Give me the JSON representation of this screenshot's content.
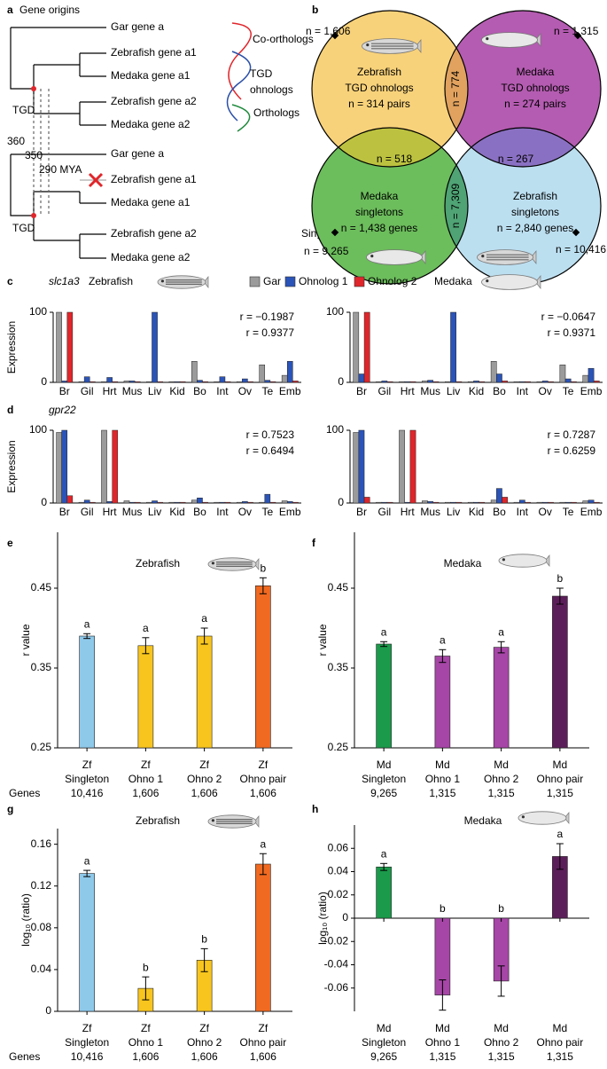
{
  "panel_labels": [
    "a",
    "b",
    "c",
    "d",
    "e",
    "f",
    "g",
    "h"
  ],
  "tree": {
    "title": "Gene origins",
    "leaves": [
      {
        "text": "Gar gene a"
      },
      {
        "text": "Zebrafish gene a1"
      },
      {
        "text": "Medaka gene a1"
      },
      {
        "text": "Zebrafish gene a2"
      },
      {
        "text": "Medaka gene a2"
      },
      {
        "text": "Gar gene a"
      },
      {
        "text": "Zebrafish gene a1",
        "color": "#9a9a9a"
      },
      {
        "text": "Medaka gene a1"
      },
      {
        "text": "Zebrafish gene a2"
      },
      {
        "text": "Medaka gene a2"
      }
    ],
    "tgd": [
      "TGD",
      "TGD"
    ],
    "ages": [
      "360",
      "350",
      "290 MYA"
    ],
    "legend": [
      {
        "lines": [
          "Co-orthologs"
        ],
        "color": "#e0262b"
      },
      {
        "lines": [
          "TGD",
          "ohnologs"
        ],
        "color": "#2a4fa8"
      },
      {
        "lines": [
          "Orthologs"
        ],
        "color": "#1f8a3c"
      }
    ],
    "singleton": {
      "text": "Singleton",
      "color": "#e0262b"
    }
  },
  "venn": {
    "sets": [
      {
        "lines": [
          "Zebrafish",
          "TGD ohnologs",
          "n = 314 pairs"
        ],
        "color": "#f8d27a"
      },
      {
        "lines": [
          "Medaka",
          "TGD ohnologs",
          "n = 274 pairs"
        ],
        "color": "#b45cb1"
      },
      {
        "lines": [
          "Medaka",
          "singletons",
          "n = 1,438 genes"
        ],
        "color": "#6cbd5c"
      },
      {
        "lines": [
          "Zebrafish",
          "singletons",
          "n = 2,840 genes"
        ],
        "color": "#bcdff0"
      }
    ],
    "overlaps": [
      {
        "text": "n = 774",
        "color": "#e0a25e"
      },
      {
        "text": "n = 518",
        "color": "#bcc23f"
      },
      {
        "text": "n = 267",
        "color": "#8a70c2"
      },
      {
        "text": "n = 7,309",
        "color": "#4fa374"
      }
    ],
    "totals": [
      "n = 1,606",
      "n = 1,315",
      "n = 9,265",
      "n = 10,416"
    ]
  },
  "expression_legend": [
    {
      "name": "Gar",
      "color": "#9b9b9b"
    },
    {
      "name": "Ohnolog 1",
      "color": "#2b54b8"
    },
    {
      "name": "Ohnolog 2",
      "color": "#e0262b"
    }
  ],
  "chart_data": [
    {
      "type": "bar",
      "gene": "slc1a3",
      "title": "Zebrafish",
      "ylabel": "Expression",
      "categories": [
        "Br",
        "Gil",
        "Hrt",
        "Mus",
        "Liv",
        "Kid",
        "Bo",
        "Int",
        "Ov",
        "Te",
        "Emb"
      ],
      "series": [
        {
          "values": [
            100,
            1,
            1,
            2,
            1,
            1,
            30,
            1,
            1,
            25,
            10
          ]
        },
        {
          "values": [
            2,
            8,
            7,
            2,
            100,
            1,
            3,
            8,
            5,
            3,
            30
          ]
        },
        {
          "values": [
            100,
            1,
            1,
            1,
            1,
            1,
            1,
            1,
            1,
            1,
            2
          ]
        }
      ],
      "ylim": [
        0,
        100
      ],
      "yticks": [
        0,
        100
      ],
      "annotations": [
        {
          "text": "r = −0.1987",
          "color": "#2a5cb8"
        },
        {
          "text": "r = 0.9377",
          "color": "#e0262b"
        }
      ]
    },
    {
      "type": "bar",
      "title": "Medaka",
      "categories": [
        "Br",
        "Gil",
        "Hrt",
        "Mus",
        "Liv",
        "Kid",
        "Bo",
        "Int",
        "Ov",
        "Te",
        "Emb"
      ],
      "series": [
        {
          "values": [
            100,
            1,
            1,
            2,
            1,
            1,
            30,
            1,
            1,
            25,
            10
          ]
        },
        {
          "values": [
            12,
            2,
            1,
            3,
            100,
            2,
            12,
            1,
            2,
            5,
            20
          ]
        },
        {
          "values": [
            100,
            1,
            1,
            1,
            1,
            1,
            2,
            1,
            1,
            1,
            2
          ]
        }
      ],
      "ylim": [
        0,
        100
      ],
      "yticks": [
        0,
        100
      ],
      "annotations": [
        {
          "text": "r = −0.0647",
          "color": "#2a5cb8"
        },
        {
          "text": "r = 0.9371",
          "color": "#e0262b"
        }
      ]
    },
    {
      "type": "bar",
      "gene": "gpr22",
      "ylabel": "Expression",
      "categories": [
        "Br",
        "Gil",
        "Hrt",
        "Mus",
        "Liv",
        "Kid",
        "Bo",
        "Int",
        "Ov",
        "Te",
        "Emb"
      ],
      "series": [
        {
          "values": [
            97,
            1,
            100,
            3,
            1,
            1,
            4,
            1,
            1,
            1,
            3
          ]
        },
        {
          "values": [
            100,
            4,
            2,
            1,
            3,
            1,
            7,
            1,
            2,
            12,
            2
          ]
        },
        {
          "values": [
            10,
            1,
            100,
            1,
            1,
            1,
            1,
            1,
            1,
            1,
            1
          ]
        }
      ],
      "ylim": [
        0,
        100
      ],
      "yticks": [
        0,
        100
      ],
      "annotations": [
        {
          "text": "r = 0.7523",
          "color": "#2a5cb8"
        },
        {
          "text": "r = 0.6494",
          "color": "#e0262b"
        }
      ]
    },
    {
      "type": "bar",
      "categories": [
        "Br",
        "Gil",
        "Hrt",
        "Mus",
        "Liv",
        "Kid",
        "Bo",
        "Int",
        "Ov",
        "Te",
        "Emb"
      ],
      "series": [
        {
          "values": [
            97,
            1,
            100,
            3,
            1,
            1,
            4,
            1,
            1,
            1,
            3
          ]
        },
        {
          "values": [
            100,
            1,
            1,
            2,
            1,
            1,
            20,
            4,
            1,
            1,
            4
          ]
        },
        {
          "values": [
            8,
            1,
            100,
            1,
            1,
            1,
            8,
            1,
            1,
            1,
            1
          ]
        }
      ],
      "ylim": [
        0,
        100
      ],
      "yticks": [
        0,
        100
      ],
      "annotations": [
        {
          "text": "r = 0.7287",
          "color": "#2a5cb8"
        },
        {
          "text": "r = 0.6259",
          "color": "#e0262b"
        }
      ]
    },
    {
      "type": "bar",
      "title": "Zebrafish",
      "ylabel": "r value",
      "categories": [
        [
          "Zf",
          "Singleton"
        ],
        [
          "Zf",
          "Ohno 1"
        ],
        [
          "Zf",
          "Ohno 2"
        ],
        [
          "Zf",
          "Ohno pair"
        ]
      ],
      "values": [
        0.39,
        0.378,
        0.39,
        0.453
      ],
      "errors": [
        0.003,
        0.01,
        0.01,
        0.01
      ],
      "colors": [
        "#8ec9ea",
        "#f7c51e",
        "#f7c51e",
        "#f06a22"
      ],
      "letters": [
        "a",
        "a",
        "a",
        "b"
      ],
      "genes_label": "Genes",
      "gene_counts": [
        "10,416",
        "1,606",
        "1,606",
        "1,606"
      ],
      "ylim": [
        0.25,
        0.52
      ],
      "yticks": [
        0.25,
        0.35,
        0.45
      ]
    },
    {
      "type": "bar",
      "title": "Medaka",
      "ylabel": "r value",
      "categories": [
        [
          "Md",
          "Singleton"
        ],
        [
          "Md",
          "Ohno 1"
        ],
        [
          "Md",
          "Ohno 2"
        ],
        [
          "Md",
          "Ohno pair"
        ]
      ],
      "values": [
        0.38,
        0.365,
        0.376,
        0.44
      ],
      "errors": [
        0.003,
        0.008,
        0.007,
        0.01
      ],
      "colors": [
        "#1a9a4a",
        "#a646a6",
        "#a646a6",
        "#5c1e5a"
      ],
      "letters": [
        "a",
        "a",
        "a",
        "b"
      ],
      "gene_counts": [
        "9,265",
        "1,315",
        "1,315",
        "1,315"
      ],
      "ylim": [
        0.25,
        0.52
      ],
      "yticks": [
        0.25,
        0.35,
        0.45
      ]
    },
    {
      "type": "bar",
      "title": "Zebrafish",
      "ylabel": "log₁₀ (ratio)",
      "categories": [
        [
          "Zf",
          "Singleton"
        ],
        [
          "Zf",
          "Ohno 1"
        ],
        [
          "Zf",
          "Ohno 2"
        ],
        [
          "Zf",
          "Ohno pair"
        ]
      ],
      "values": [
        0.132,
        0.022,
        0.049,
        0.141
      ],
      "errors": [
        0.003,
        0.011,
        0.011,
        0.01
      ],
      "colors": [
        "#8ec9ea",
        "#f7c51e",
        "#f7c51e",
        "#f06a22"
      ],
      "letters": [
        "a",
        "b",
        "b",
        "a"
      ],
      "genes_label": "Genes",
      "gene_counts": [
        "10,416",
        "1,606",
        "1,606",
        "1,606"
      ],
      "ylim": [
        0,
        0.175
      ],
      "yticks": [
        0,
        0.04,
        0.08,
        0.12,
        0.16
      ]
    },
    {
      "type": "bar",
      "title": "Medaka",
      "ylabel": "log₁₀ (ratio)",
      "categories": [
        [
          "Md",
          "Singleton"
        ],
        [
          "Md",
          "Ohno 1"
        ],
        [
          "Md",
          "Ohno 2"
        ],
        [
          "Md",
          "Ohno pair"
        ]
      ],
      "values": [
        0.044,
        -0.066,
        -0.054,
        0.053
      ],
      "errors": [
        0.003,
        0.013,
        0.013,
        0.011
      ],
      "colors": [
        "#1a9a4a",
        "#a646a6",
        "#a646a6",
        "#5c1e5a"
      ],
      "letters": [
        "a",
        "b",
        "b",
        "a"
      ],
      "gene_counts": [
        "9,265",
        "1,315",
        "1,315",
        "1,315"
      ],
      "ylim": [
        -0.08,
        0.08
      ],
      "yticks": [
        -0.06,
        -0.04,
        -0.02,
        0,
        0.02,
        0.04,
        0.06
      ]
    }
  ]
}
